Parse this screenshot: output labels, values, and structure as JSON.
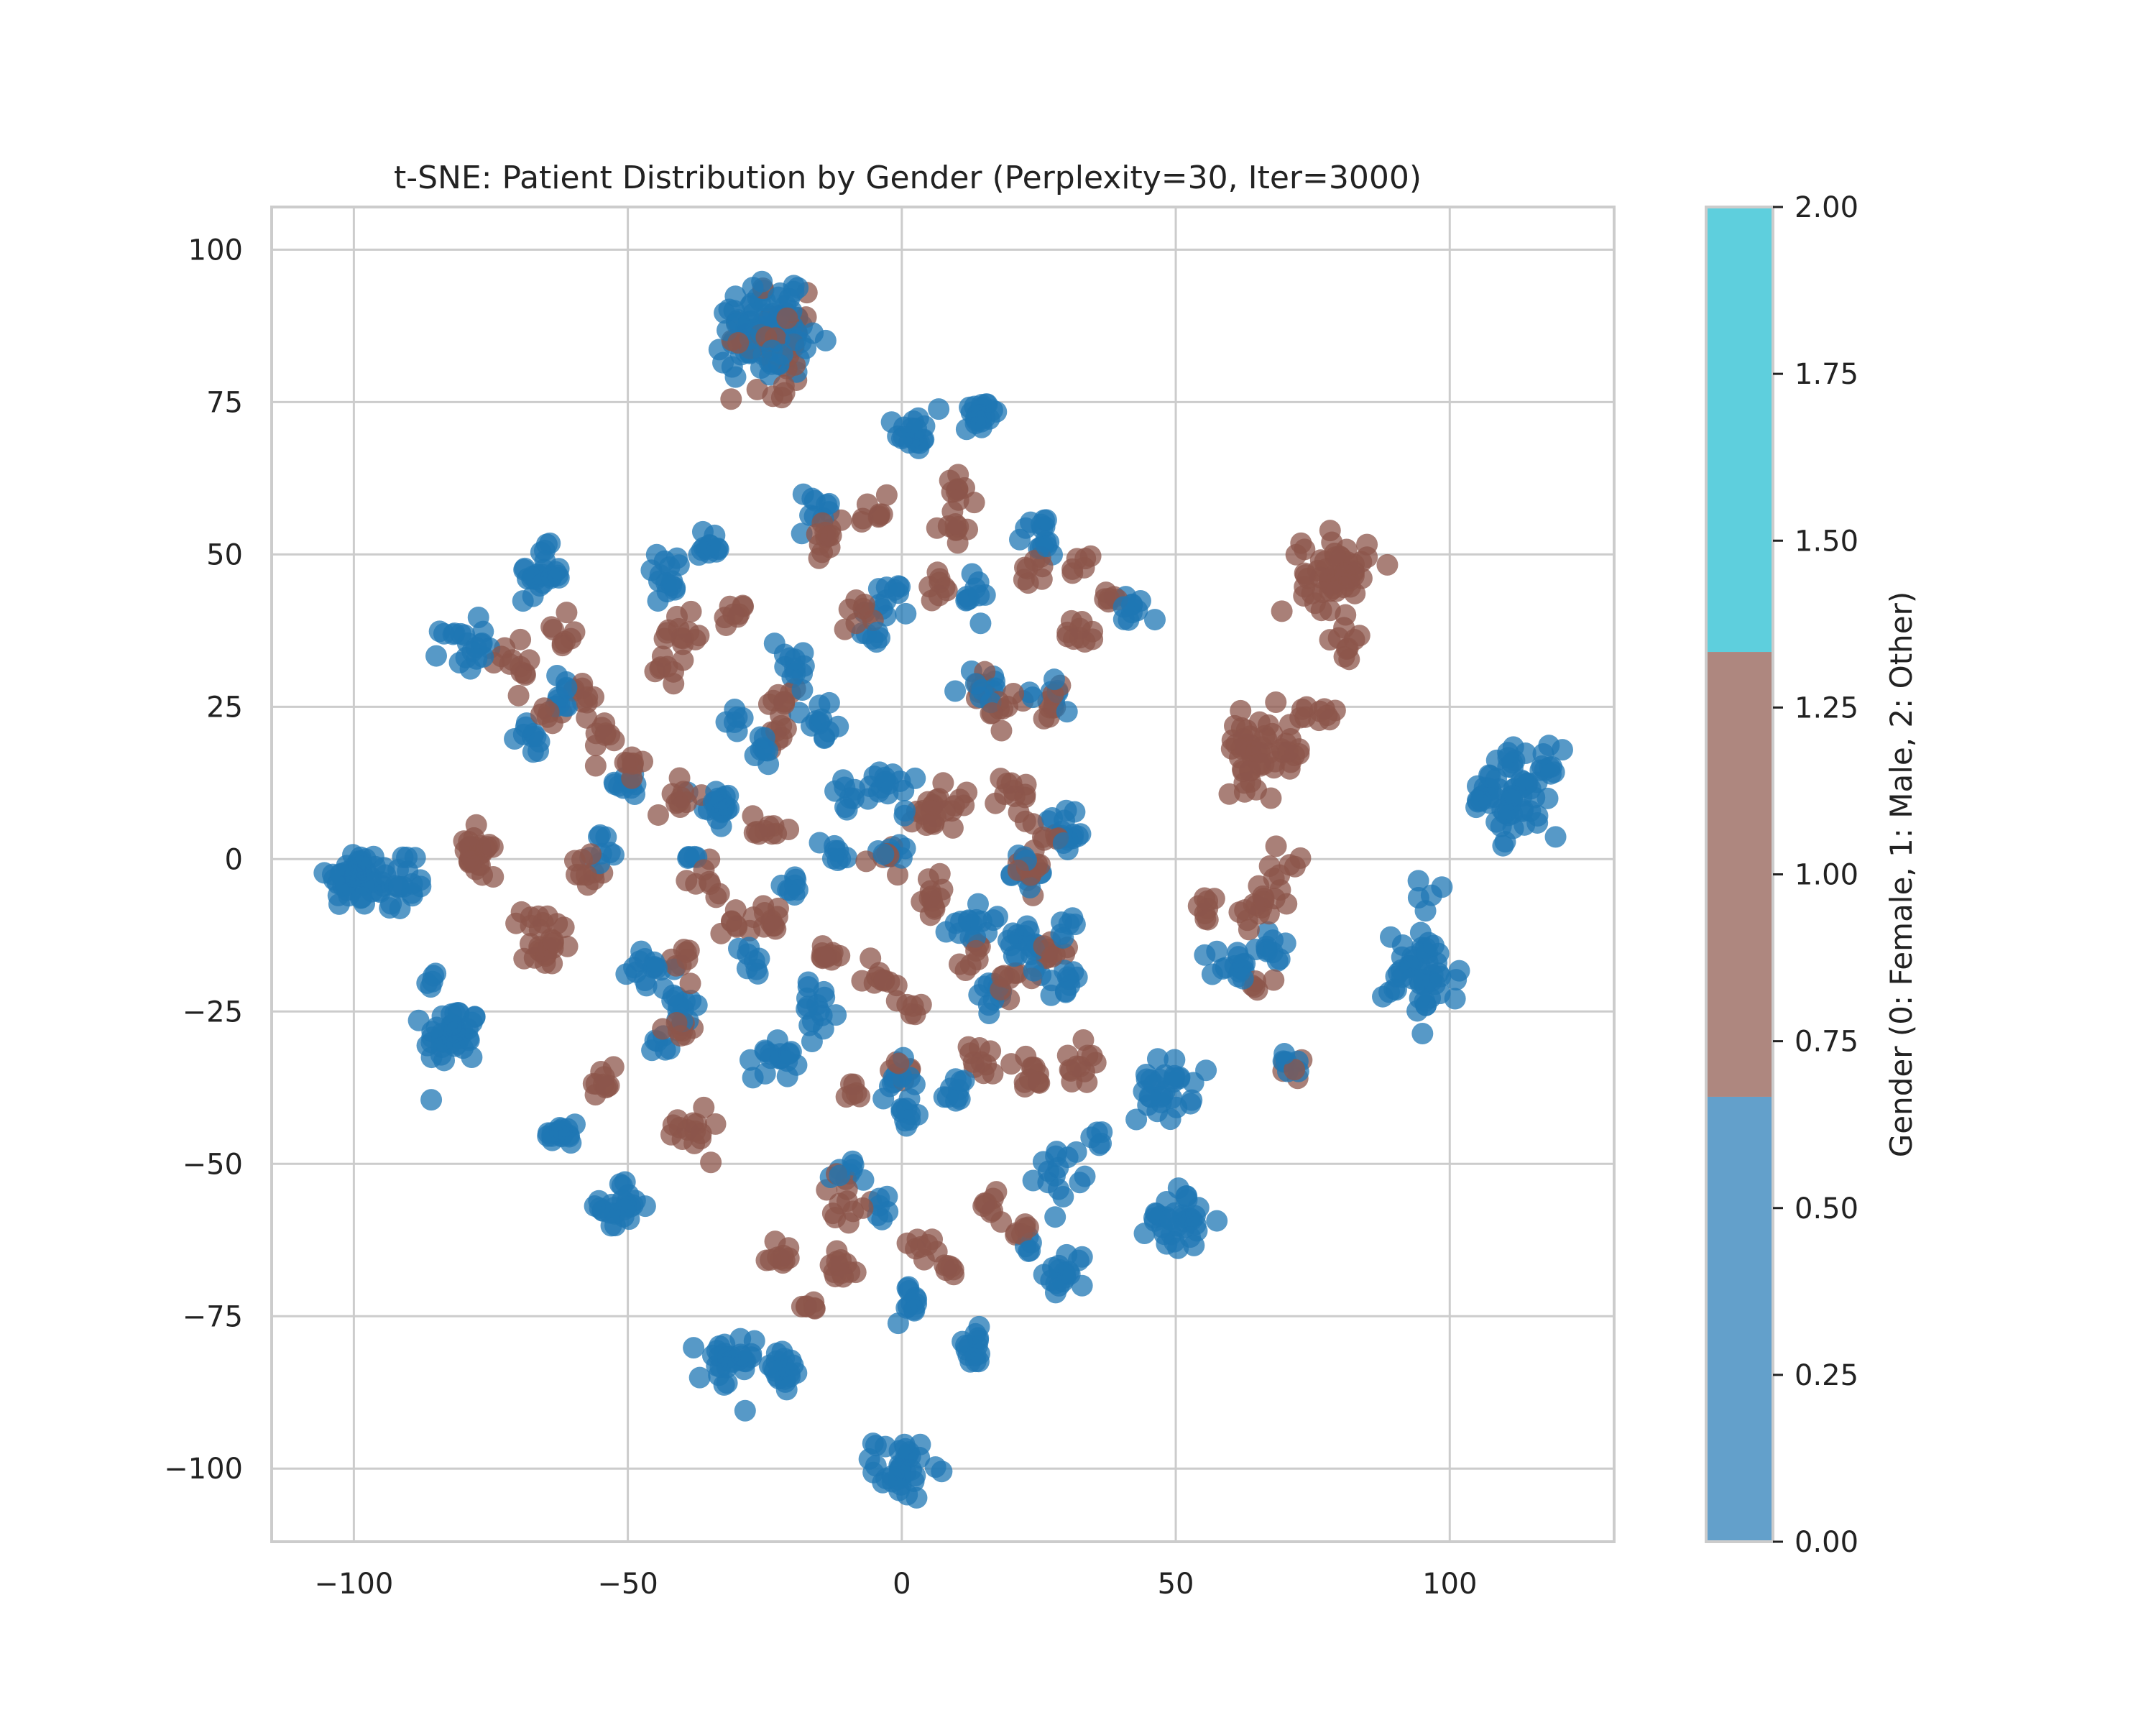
{
  "chart_data": {
    "type": "scatter",
    "title": "t-SNE: Patient Distribution by Gender (Perplexity=30, Iter=3000)",
    "xlabel": "",
    "ylabel": "",
    "xlim": [
      -115,
      130
    ],
    "ylim": [
      -112,
      107
    ],
    "x_ticks": [
      -100,
      -50,
      0,
      50,
      100
    ],
    "y_ticks": [
      -100,
      -75,
      -50,
      -25,
      0,
      25,
      50,
      75,
      100
    ],
    "x_tick_labels": [
      "−100",
      "−50",
      "0",
      "50",
      "100"
    ],
    "y_tick_labels": [
      "−100",
      "−75",
      "−50",
      "−25",
      "0",
      "25",
      "50",
      "75",
      "100"
    ],
    "grid": true,
    "point_alpha": 0.75,
    "series": [
      {
        "name": "0",
        "gender_code": 0,
        "color": "#1f77b4",
        "clusters": [
          [
            -25,
            88,
            4,
            50
          ],
          [
            -20,
            85,
            3,
            20
          ],
          [
            2,
            70,
            1.5,
            18
          ],
          [
            14,
            73,
            1.8,
            22
          ],
          [
            -100,
            -3,
            2.5,
            40
          ],
          [
            -92,
            -4,
            3,
            25
          ],
          [
            -82,
            -29,
            2.5,
            40
          ],
          [
            -66,
            47,
            2,
            25
          ],
          [
            -80,
            35,
            2,
            20
          ],
          [
            -62,
            -45,
            1.5,
            18
          ],
          [
            -51,
            -57,
            2,
            25
          ],
          [
            -43,
            47,
            2,
            15
          ],
          [
            -35,
            51,
            1.5,
            12
          ],
          [
            -27,
            85,
            3,
            25
          ],
          [
            -15,
            57,
            2,
            10
          ],
          [
            -3,
            42,
            2,
            12
          ],
          [
            13,
            43,
            1.5,
            10
          ],
          [
            25,
            53,
            2,
            15
          ],
          [
            42,
            41,
            1.5,
            10
          ],
          [
            113,
            11,
            3.5,
            60
          ],
          [
            107,
            11,
            2,
            10
          ],
          [
            95,
            -19,
            3.5,
            50
          ],
          [
            97,
            -6,
            1.5,
            5
          ],
          [
            48,
            -38,
            2.5,
            30
          ],
          [
            50,
            -59,
            2.5,
            35
          ],
          [
            30,
            -68,
            2,
            18
          ],
          [
            29,
            -51,
            2,
            15
          ],
          [
            0,
            -100,
            2.5,
            35
          ],
          [
            -32,
            -83,
            2.5,
            30
          ],
          [
            -22,
            -84,
            2,
            18
          ],
          [
            13,
            -80,
            1.5,
            15
          ],
          [
            2,
            -73,
            1.5,
            12
          ],
          [
            -23,
            -32,
            2,
            18
          ],
          [
            -15,
            -25,
            2,
            15
          ],
          [
            -1,
            -36,
            1.5,
            10
          ],
          [
            0,
            -43,
            1.5,
            10
          ],
          [
            -46,
            -18,
            2,
            15
          ],
          [
            -40,
            -25,
            1.5,
            12
          ],
          [
            -34,
            9,
            2,
            20
          ],
          [
            -20,
            33,
            2,
            12
          ],
          [
            -15,
            22,
            2,
            12
          ],
          [
            -2,
            12,
            2,
            15
          ],
          [
            -2,
            2,
            1.5,
            10
          ],
          [
            13,
            -10,
            2,
            15
          ],
          [
            17,
            -22,
            1.5,
            10
          ],
          [
            24,
            -16,
            2,
            12
          ],
          [
            30,
            5,
            2,
            15
          ],
          [
            30,
            -20,
            1.5,
            10
          ],
          [
            22,
            -2,
            1.5,
            10
          ],
          [
            15,
            28,
            2,
            12
          ],
          [
            28,
            27,
            1.5,
            8
          ],
          [
            60,
            -18,
            2,
            15
          ],
          [
            68,
            -14,
            1.5,
            10
          ],
          [
            71,
            -34,
            1,
            6
          ],
          [
            -12,
            1,
            1.5,
            8
          ],
          [
            -20,
            -5,
            1.5,
            8
          ],
          [
            -26,
            18,
            1.5,
            8
          ],
          [
            -10,
            10,
            1.5,
            8
          ],
          [
            -85,
            -20,
            1,
            5
          ],
          [
            -62,
            27,
            1.5,
            10
          ],
          [
            -67,
            20,
            1.5,
            10
          ],
          [
            -55,
            2,
            1.5,
            8
          ],
          [
            -38,
            1,
            1,
            5
          ],
          [
            -28,
            -17,
            1.5,
            8
          ],
          [
            -9,
            -52,
            1.5,
            8
          ],
          [
            -3,
            -57,
            1,
            6
          ],
          [
            10,
            -38,
            1.5,
            10
          ],
          [
            22,
            -13,
            1.2,
            8
          ],
          [
            30,
            -11,
            1,
            6
          ],
          [
            36,
            -46,
            1,
            5
          ],
          [
            23,
            -63,
            1,
            5
          ],
          [
            -50,
            13,
            1.5,
            10
          ],
          [
            -44,
            -30,
            1,
            6
          ],
          [
            -30,
            23,
            1,
            6
          ],
          [
            -5,
            37,
            1,
            6
          ]
        ]
      },
      {
        "name": "1",
        "gender_code": 1,
        "color": "#8c564b",
        "clusters": [
          [
            -23,
            85,
            4,
            45
          ],
          [
            79,
            47,
            3,
            55
          ],
          [
            81,
            36,
            1.5,
            5
          ],
          [
            65,
            18,
            3,
            45
          ],
          [
            71,
            17,
            1.5,
            8
          ],
          [
            -78,
            2,
            1.5,
            18
          ],
          [
            -78,
            -1,
            1.5,
            8
          ],
          [
            -65,
            -14,
            2,
            20
          ],
          [
            -70,
            31,
            2,
            12
          ],
          [
            -58,
            27,
            1.5,
            8
          ],
          [
            -62,
            38,
            1.5,
            8
          ],
          [
            -55,
            20,
            2,
            10
          ],
          [
            -50,
            15,
            1.5,
            8
          ],
          [
            -40,
            37,
            2,
            12
          ],
          [
            -30,
            41,
            1.5,
            8
          ],
          [
            -42,
            31,
            1.5,
            8
          ],
          [
            -55,
            -36,
            1.5,
            10
          ],
          [
            -39,
            -44,
            2,
            15
          ],
          [
            -40,
            -28,
            1.5,
            10
          ],
          [
            -40,
            -17,
            1.5,
            8
          ],
          [
            -36,
            -4,
            1.5,
            8
          ],
          [
            -40,
            10,
            1.5,
            10
          ],
          [
            -57,
            -1,
            1.5,
            10
          ],
          [
            -30,
            -10,
            1.5,
            8
          ],
          [
            -25,
            5,
            1.5,
            10
          ],
          [
            -22,
            26,
            1.5,
            8
          ],
          [
            -23,
            20,
            1.5,
            8
          ],
          [
            -13,
            52,
            2,
            12
          ],
          [
            -5,
            56,
            1.5,
            8
          ],
          [
            9,
            54,
            1.5,
            8
          ],
          [
            11,
            61,
            1.5,
            10
          ],
          [
            7,
            45,
            1.5,
            8
          ],
          [
            -8,
            41,
            1.5,
            8
          ],
          [
            24,
            47,
            1.5,
            8
          ],
          [
            32,
            47,
            1.5,
            6
          ],
          [
            33,
            37,
            1.5,
            10
          ],
          [
            38,
            43,
            1,
            6
          ],
          [
            17,
            26,
            2,
            15
          ],
          [
            27,
            26,
            1.5,
            8
          ],
          [
            20,
            10,
            2,
            12
          ],
          [
            8,
            9,
            2,
            15
          ],
          [
            3,
            8,
            1.5,
            8
          ],
          [
            6,
            -6,
            1.5,
            12
          ],
          [
            -2,
            0,
            1.5,
            8
          ],
          [
            -4,
            -20,
            1.5,
            10
          ],
          [
            1,
            -23,
            1,
            6
          ],
          [
            -14,
            -15,
            1.5,
            10
          ],
          [
            -23,
            -10,
            1.5,
            10
          ],
          [
            -9,
            -38,
            1,
            6
          ],
          [
            0,
            -35,
            1,
            6
          ],
          [
            14,
            -33,
            1.5,
            10
          ],
          [
            23,
            -35,
            1.5,
            12
          ],
          [
            33,
            -34,
            1.5,
            12
          ],
          [
            16,
            -57,
            1.5,
            8
          ],
          [
            -10,
            -55,
            2,
            12
          ],
          [
            -23,
            -65,
            1.5,
            10
          ],
          [
            -11,
            -67,
            2,
            12
          ],
          [
            4,
            -64,
            1.5,
            8
          ],
          [
            9,
            -67,
            1,
            6
          ],
          [
            22,
            -61,
            1,
            6
          ],
          [
            -17,
            -74,
            1,
            6
          ],
          [
            22,
            -2,
            1.5,
            10
          ],
          [
            29,
            -15,
            1.5,
            10
          ],
          [
            20,
            -20,
            1.5,
            8
          ],
          [
            27,
            3,
            1.5,
            8
          ],
          [
            55,
            -8,
            1.5,
            8
          ],
          [
            65,
            -8,
            2,
            15
          ],
          [
            70,
            -2,
            1.5,
            8
          ],
          [
            65,
            -21,
            1,
            5
          ],
          [
            71,
            -34,
            1,
            5
          ],
          [
            78,
            24,
            1.2,
            6
          ],
          [
            74,
            24,
            1,
            4
          ],
          [
            80,
            34,
            1,
            4
          ],
          [
            14,
            -16,
            1.5,
            8
          ],
          [
            -64,
            24,
            1.5,
            6
          ],
          [
            -68,
            -10,
            1.5,
            6
          ]
        ]
      }
    ],
    "colorbar": {
      "label": "Gender (0: Female, 1: Male, 2: Other)",
      "min": 0,
      "max": 2,
      "ticks": [
        0,
        0.25,
        0.5,
        0.75,
        1,
        1.25,
        1.5,
        1.75,
        2
      ],
      "tick_labels": [
        "0.00",
        "0.25",
        "0.50",
        "0.75",
        "1.00",
        "1.25",
        "1.50",
        "1.75",
        "2.00"
      ],
      "segments": [
        {
          "from": 0,
          "to": 0.6667,
          "color": "#63a0cb"
        },
        {
          "from": 0.6667,
          "to": 1.3333,
          "color": "#ae877f"
        },
        {
          "from": 1.3333,
          "to": 2,
          "color": "#5ecfdd"
        }
      ]
    }
  }
}
